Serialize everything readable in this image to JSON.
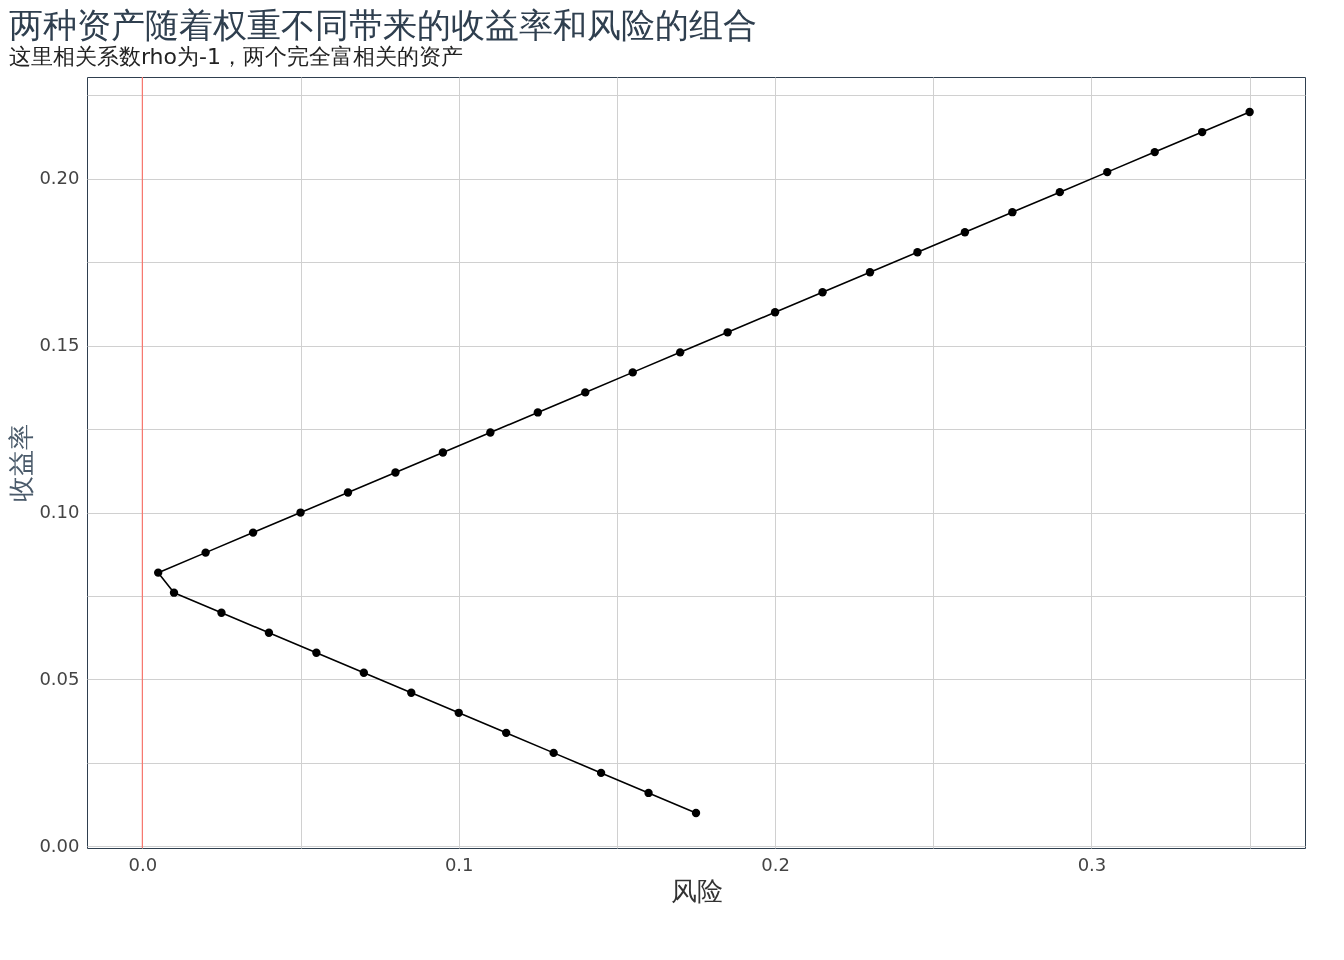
{
  "chart_data": {
    "type": "line",
    "title": "两种资产随着权重不同带来的收益率和风险的组合",
    "subtitle": "这里相关系数rho为-1，两个完全富相关的资产",
    "xlabel": "风险",
    "ylabel": "收益率",
    "x": [
      0.175,
      0.16,
      0.145,
      0.13,
      0.115,
      0.1,
      0.085,
      0.07,
      0.055,
      0.04,
      0.025,
      0.01,
      0.005,
      0.02,
      0.035,
      0.05,
      0.065,
      0.08,
      0.095,
      0.11,
      0.125,
      0.14,
      0.155,
      0.17,
      0.185,
      0.2,
      0.215,
      0.23,
      0.245,
      0.26,
      0.275,
      0.29,
      0.305,
      0.32,
      0.335,
      0.35
    ],
    "series": [
      {
        "color": "#000000",
        "values": [
          0.01,
          0.016,
          0.022,
          0.028,
          0.034,
          0.04,
          0.046,
          0.052,
          0.058,
          0.064,
          0.07,
          0.076,
          0.082,
          0.088,
          0.094,
          0.1,
          0.106,
          0.112,
          0.118,
          0.124,
          0.13,
          0.136,
          0.142,
          0.148,
          0.154,
          0.16,
          0.166,
          0.172,
          0.178,
          0.184,
          0.19,
          0.196,
          0.202,
          0.208,
          0.214,
          0.22
        ]
      }
    ],
    "marker": "circle",
    "line_style": "solid",
    "grid": true,
    "xlim": [
      -0.0175,
      0.3675
    ],
    "ylim": [
      -0.0005,
      0.2305
    ],
    "xticks": [
      {
        "value": 0,
        "label": "0.0"
      },
      {
        "value": 0.05,
        "label": null
      },
      0.1,
      {
        "value": 0.15,
        "label": null
      },
      0.2,
      {
        "value": 0.25,
        "label": null
      },
      0.3,
      {
        "value": 0.35,
        "label": null
      }
    ],
    "yticks": [
      {
        "value": 0,
        "label": "0.00"
      },
      {
        "value": 0.025,
        "label": null
      },
      0.05,
      {
        "value": 0.075,
        "label": null
      },
      {
        "value": 0.1,
        "label": "0.10"
      },
      {
        "value": 0.125,
        "label": null
      },
      0.15,
      {
        "value": 0.175,
        "label": null
      },
      {
        "value": 0.2,
        "label": "0.20"
      },
      {
        "value": 0.225,
        "label": null
      }
    ],
    "ref_lines": [
      {
        "axis": "x",
        "value": 0,
        "color": "#f8766d"
      }
    ]
  }
}
